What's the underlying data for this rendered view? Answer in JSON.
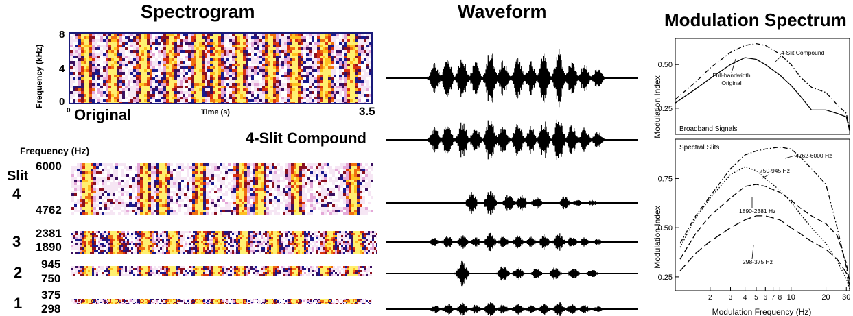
{
  "spectrogram": {
    "title": "Spectrogram",
    "original": {
      "label": "Original",
      "ylabel": "Frequency (kHz)",
      "yticks": [
        "8",
        "4",
        "0"
      ],
      "xlabel": "Time (s)",
      "x_start": "0",
      "x_end": "3.5"
    },
    "compound_label": "4-Slit Compound",
    "slits_header": "Frequency (Hz)",
    "slit_word": "Slit",
    "slits": [
      {
        "number": "4",
        "high": "6000",
        "low": "4762"
      },
      {
        "number": "3",
        "high": "2381",
        "low": "1890"
      },
      {
        "number": "2",
        "high": "945",
        "low": "750"
      },
      {
        "number": "1",
        "high": "375",
        "low": "298"
      }
    ]
  },
  "waveform": {
    "title": "Waveform"
  },
  "modulation": {
    "title": "Modulation Spectrum",
    "colors": {
      "axis": "#000000",
      "line": "#000000"
    }
  },
  "chart_data": [
    {
      "type": "line",
      "title": "Modulation Spectrum",
      "panel_label": "Broadband Signals",
      "ylabel": "Modulation Index",
      "xlabel": "",
      "x_scale": "log",
      "xlim": [
        1,
        32
      ],
      "ylim": [
        0.1,
        0.65
      ],
      "yticks": [
        0.25,
        0.5
      ],
      "ytick_labels": [
        "0.25",
        "0.50"
      ],
      "series": [
        {
          "name": "Full-bandwidth Original",
          "style": "solid",
          "x": [
            1,
            1.5,
            2,
            3,
            4,
            5,
            6,
            8,
            10,
            12,
            15,
            20,
            25,
            30,
            32
          ],
          "y": [
            0.28,
            0.36,
            0.42,
            0.5,
            0.54,
            0.53,
            0.5,
            0.44,
            0.38,
            0.32,
            0.24,
            0.24,
            0.22,
            0.2,
            0.12
          ]
        },
        {
          "name": "4-Slit Compound",
          "style": "dashdot",
          "x": [
            1,
            1.5,
            2,
            3,
            4,
            5,
            6,
            8,
            10,
            12,
            15,
            20,
            25,
            30,
            32
          ],
          "y": [
            0.3,
            0.4,
            0.48,
            0.57,
            0.61,
            0.62,
            0.61,
            0.56,
            0.5,
            0.43,
            0.37,
            0.34,
            0.27,
            0.22,
            0.13
          ]
        }
      ]
    },
    {
      "type": "line",
      "panel_label": "Spectral Slits",
      "ylabel": "Modulation Index",
      "xlabel": "Modulation Frequency (Hz)",
      "x_scale": "log",
      "xlim": [
        1,
        32
      ],
      "ylim": [
        0.18,
        0.95
      ],
      "xticks": [
        2,
        3,
        4,
        5,
        6,
        7,
        8,
        10,
        20,
        30
      ],
      "xtick_labels": [
        "2",
        "3",
        "4",
        "5",
        "6",
        "7",
        "8",
        "10",
        "20",
        "30"
      ],
      "yticks": [
        0.25,
        0.5,
        0.75
      ],
      "ytick_labels": [
        "0.25",
        "0.50",
        "0.75"
      ],
      "series": [
        {
          "name": "4762-6000 Hz",
          "style": "dashdot",
          "x": [
            1.1,
            1.5,
            2,
            3,
            4,
            5,
            6,
            8,
            10,
            12,
            15,
            20,
            25,
            30,
            32
          ],
          "y": [
            0.42,
            0.56,
            0.66,
            0.8,
            0.87,
            0.89,
            0.9,
            0.91,
            0.9,
            0.86,
            0.8,
            0.72,
            0.5,
            0.3,
            0.22
          ]
        },
        {
          "name": "750-945 Hz",
          "style": "dotted",
          "x": [
            1.1,
            1.5,
            2,
            3,
            4,
            5,
            6,
            8,
            10,
            12,
            15,
            20,
            25,
            30,
            32
          ],
          "y": [
            0.4,
            0.55,
            0.65,
            0.77,
            0.81,
            0.79,
            0.75,
            0.69,
            0.63,
            0.57,
            0.5,
            0.42,
            0.33,
            0.24,
            0.19
          ]
        },
        {
          "name": "1890-2381 Hz",
          "style": "dashed",
          "x": [
            1.1,
            1.5,
            2,
            3,
            4,
            5,
            6,
            8,
            10,
            12,
            15,
            20,
            25,
            30,
            32
          ],
          "y": [
            0.34,
            0.47,
            0.56,
            0.65,
            0.71,
            0.72,
            0.71,
            0.68,
            0.64,
            0.6,
            0.56,
            0.52,
            0.46,
            0.32,
            0.22
          ]
        },
        {
          "name": "298-375 Hz",
          "style": "longdash",
          "x": [
            1.1,
            1.5,
            2,
            3,
            4,
            5,
            6,
            8,
            10,
            12,
            15,
            20,
            25,
            30,
            32
          ],
          "y": [
            0.28,
            0.37,
            0.43,
            0.5,
            0.54,
            0.56,
            0.56,
            0.54,
            0.5,
            0.47,
            0.43,
            0.39,
            0.34,
            0.27,
            0.2
          ]
        }
      ]
    }
  ]
}
